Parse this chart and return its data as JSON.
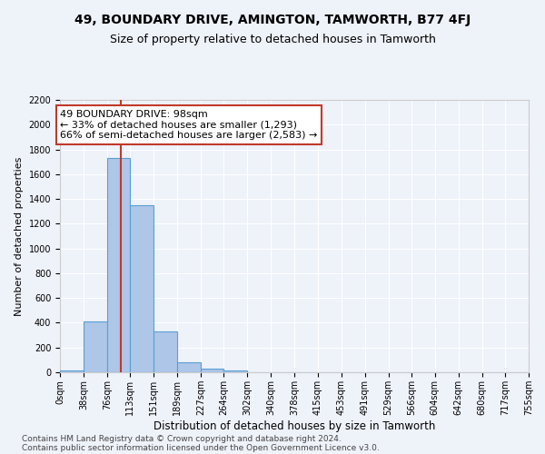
{
  "title1": "49, BOUNDARY DRIVE, AMINGTON, TAMWORTH, B77 4FJ",
  "title2": "Size of property relative to detached houses in Tamworth",
  "xlabel": "Distribution of detached houses by size in Tamworth",
  "ylabel": "Number of detached properties",
  "bin_edges": [
    0,
    38,
    76,
    113,
    151,
    189,
    227,
    264,
    302,
    340,
    378,
    415,
    453,
    491,
    529,
    566,
    604,
    642,
    680,
    717,
    755
  ],
  "bar_heights": [
    15,
    410,
    1730,
    1350,
    330,
    80,
    30,
    18,
    0,
    0,
    0,
    0,
    0,
    0,
    0,
    0,
    0,
    0,
    0,
    0
  ],
  "bar_color": "#aec6e8",
  "bar_edge_color": "#5a9fd4",
  "vline_x": 98,
  "vline_color": "#c0392b",
  "annotation_text": "49 BOUNDARY DRIVE: 98sqm\n← 33% of detached houses are smaller (1,293)\n66% of semi-detached houses are larger (2,583) →",
  "annotation_box_color": "#ffffff",
  "annotation_box_edge": "#c0392b",
  "ylim": [
    0,
    2200
  ],
  "yticks": [
    0,
    200,
    400,
    600,
    800,
    1000,
    1200,
    1400,
    1600,
    1800,
    2000,
    2200
  ],
  "tick_labels": [
    "0sqm",
    "38sqm",
    "76sqm",
    "113sqm",
    "151sqm",
    "189sqm",
    "227sqm",
    "264sqm",
    "302sqm",
    "340sqm",
    "378sqm",
    "415sqm",
    "453sqm",
    "491sqm",
    "529sqm",
    "566sqm",
    "604sqm",
    "642sqm",
    "680sqm",
    "717sqm",
    "755sqm"
  ],
  "footer1": "Contains HM Land Registry data © Crown copyright and database right 2024.",
  "footer2": "Contains public sector information licensed under the Open Government Licence v3.0.",
  "bg_color": "#eef2f9",
  "grid_color": "#ffffff",
  "title1_fontsize": 10,
  "title2_fontsize": 9,
  "xlabel_fontsize": 8.5,
  "ylabel_fontsize": 8,
  "tick_fontsize": 7,
  "annotation_fontsize": 8,
  "footer_fontsize": 6.5
}
